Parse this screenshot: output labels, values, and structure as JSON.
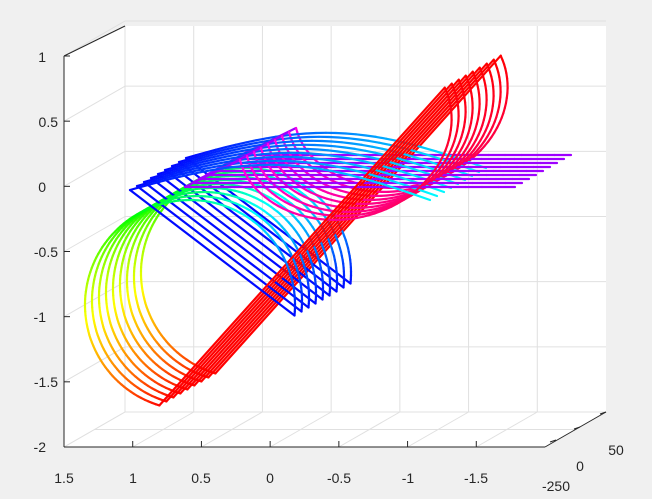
{
  "chart_data": {
    "type": "line3d",
    "title": "",
    "xlabel": "",
    "ylabel": "",
    "zlabel": "",
    "x_ticks": [
      "1.5",
      "1",
      "0.5",
      "0",
      "-0.5",
      "-1",
      "-1.5"
    ],
    "y_ticks": [
      "-250",
      "0",
      "50"
    ],
    "z_ticks": [
      "1",
      "0.5",
      "0",
      "-0.5",
      "-1",
      "-1.5",
      "-2"
    ],
    "xlim": [
      1.5,
      -2
    ],
    "zlim": [
      -2,
      1
    ],
    "grid": true,
    "colormap": "hsv",
    "series_count": 9,
    "curve_segments": [
      {
        "name": "straight-leg",
        "x_start": 1.0,
        "x_end": -2.0,
        "z": 0.0
      },
      {
        "name": "upper-loop",
        "center_x": -0.55,
        "center_z": 0.25,
        "radius": 0.4
      },
      {
        "name": "lower-hook",
        "center_x": 0.9,
        "center_z": -0.9,
        "radius": 0.8
      }
    ]
  }
}
